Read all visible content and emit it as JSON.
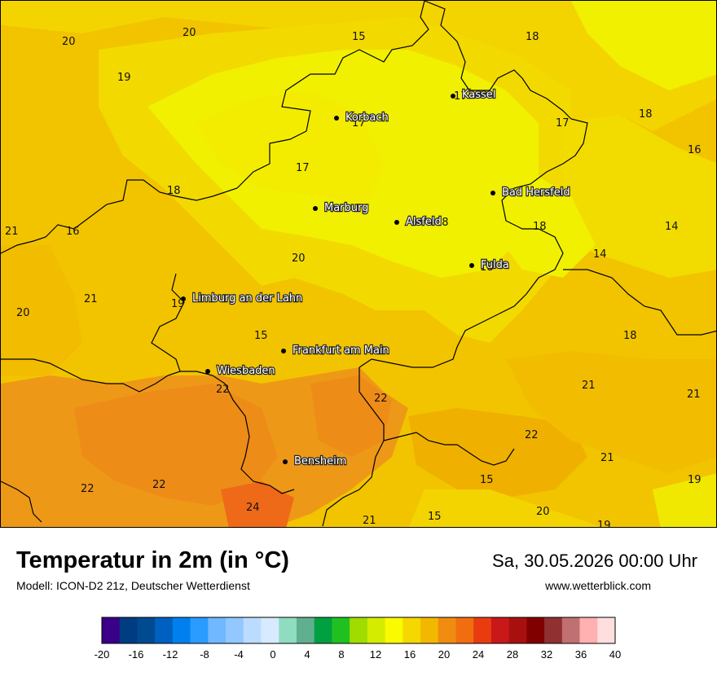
{
  "header": {
    "title": "Temperatur in 2m (in °C)",
    "model": "Modell: ICON-D2 21z, Deutscher Wetterdienst",
    "datetime": "Sa, 30.05.2026 00:00 Uhr",
    "website": "www.wetterblick.com"
  },
  "cities": [
    {
      "name": "Kassel",
      "value": "17"
    },
    {
      "name": "Korbach",
      "value": "17"
    },
    {
      "name": "Bad Hersfeld",
      "value": ""
    },
    {
      "name": "Marburg",
      "value": ""
    },
    {
      "name": "Alsfeld",
      "value": "18"
    },
    {
      "name": "Fulda",
      "value": "18"
    },
    {
      "name": "Limburg an der Lahn",
      "value": "19"
    },
    {
      "name": "Frankfurt am Main",
      "value": ""
    },
    {
      "name": "Wiesbaden",
      "value": ""
    },
    {
      "name": "Bensheim",
      "value": ""
    }
  ],
  "temperature_labels": [
    "20",
    "20",
    "15",
    "18",
    "19",
    "18",
    "17",
    "16",
    "17",
    "18",
    "14",
    "21",
    "16",
    "18",
    "14",
    "21",
    "19",
    "20",
    "15",
    "18",
    "21",
    "22",
    "22",
    "21",
    "22",
    "21",
    "22",
    "22",
    "15",
    "19",
    "24",
    "21",
    "15",
    "20",
    "19"
  ],
  "legend": {
    "ticks": [
      "-20",
      "-16",
      "-12",
      "-8",
      "-4",
      "0",
      "4",
      "8",
      "12",
      "16",
      "20",
      "24",
      "28",
      "32",
      "36",
      "40"
    ],
    "colors": [
      "#3a0088",
      "#003c82",
      "#004a92",
      "#0060c0",
      "#0080ee",
      "#2a9cff",
      "#70b8ff",
      "#92c8ff",
      "#bcdcff",
      "#d8eaff",
      "#90dcc0",
      "#60b090",
      "#00a040",
      "#20c020",
      "#a0dc00",
      "#d4ec00",
      "#fafa00",
      "#f4d800",
      "#f2b800",
      "#f08c10",
      "#f06e10",
      "#e83c10",
      "#c81818",
      "#a81010",
      "#800000",
      "#903030",
      "#c07070",
      "#ffb0b0",
      "#ffdede"
    ]
  },
  "palette": {
    "yellow": "#f0f000",
    "light_orange": "#f4d400",
    "orange": "#f0b800",
    "dark_orange": "#ee8c18",
    "red_orange": "#ee6a18"
  }
}
